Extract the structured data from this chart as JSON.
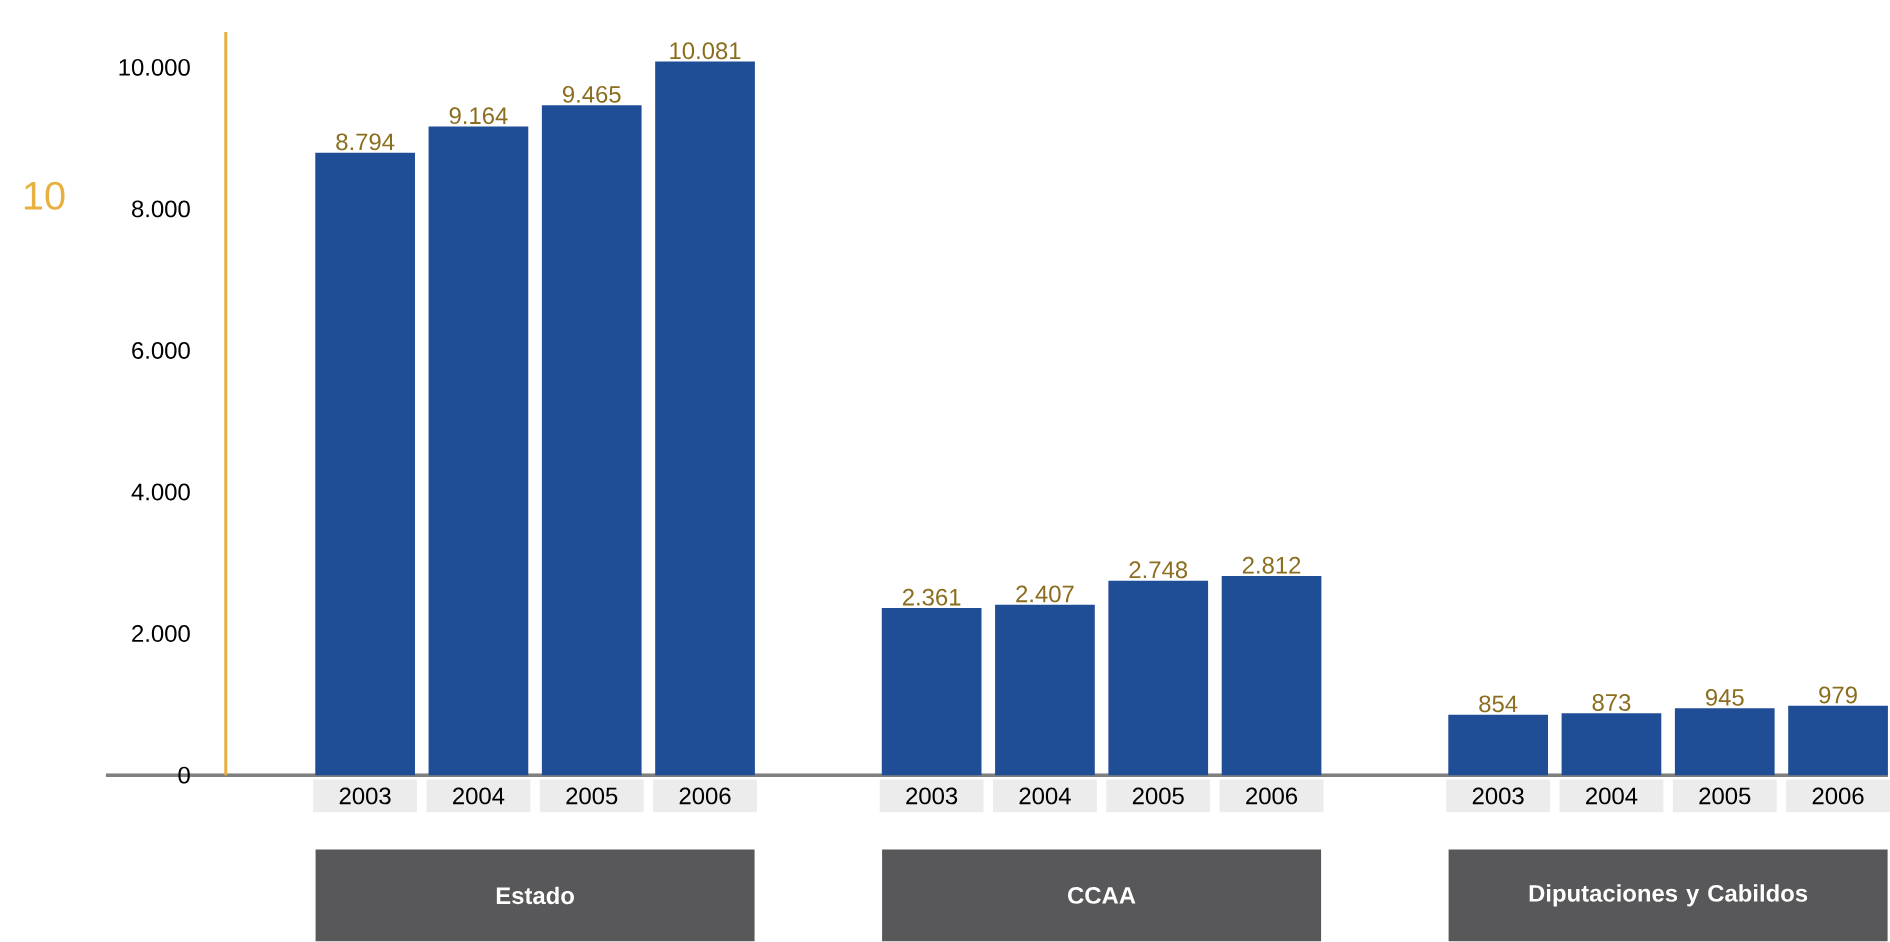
{
  "chart_data": {
    "type": "bar",
    "categories": [
      "2003",
      "2004",
      "2005",
      "2006",
      null,
      "2003",
      "2004",
      "2005",
      "2006",
      null,
      "2003",
      "2004",
      "2005",
      "2006"
    ],
    "values": [
      8794,
      9164,
      9465,
      10081,
      null,
      2361,
      2407,
      2748,
      2812,
      null,
      854,
      873,
      945,
      979
    ],
    "value_labels": [
      "8.794",
      "9.164",
      "9.465",
      "10.081",
      null,
      "2.361",
      "2.407",
      "2.748",
      "2.812",
      null,
      "854",
      "873",
      "945",
      "979"
    ],
    "color": "#1f4e96",
    "ylim": [
      0,
      10500
    ],
    "yticks": [
      0,
      {
        "value": 2000,
        "label": "2.000"
      },
      {
        "value": 4000,
        "label": "4.000"
      },
      {
        "value": 6000,
        "label": "6.000"
      },
      {
        "value": 8000,
        "label": "8.000"
      },
      {
        "value": 10000,
        "label": "10.000"
      }
    ],
    "annotations": [
      "10",
      "Estado",
      "CCAA",
      "Diputaciones y Cabildos"
    ],
    "grid": false
  }
}
